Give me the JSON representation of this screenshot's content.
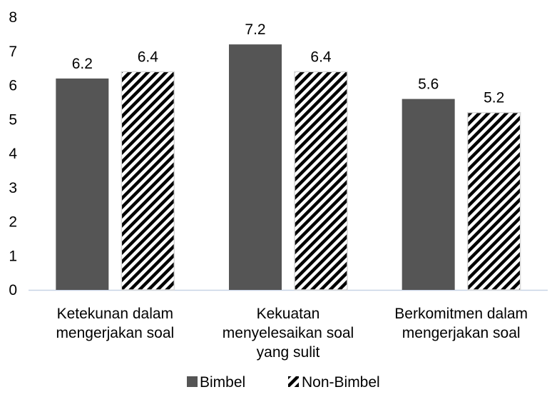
{
  "chart_data": {
    "type": "bar",
    "categories": [
      [
        "Ketekunan dalam",
        "mengerjakan soal"
      ],
      [
        "Kekuatan",
        "menyelesaikan soal",
        "yang sulit"
      ],
      [
        "Berkomitmen dalam",
        "mengerjakan soal"
      ]
    ],
    "series": [
      {
        "name": "Bimbel",
        "values": [
          6.2,
          7.2,
          5.6
        ],
        "fill": "solid",
        "color": "#555555"
      },
      {
        "name": "Non-Bimbel",
        "values": [
          6.4,
          6.4,
          5.2
        ],
        "fill": "diagonal-stripes",
        "color": "#000000"
      }
    ],
    "ylim": [
      0,
      8
    ],
    "yticks": [
      0,
      1,
      2,
      3,
      4,
      5,
      6,
      7,
      8
    ],
    "data_labels": true,
    "gridlines": false,
    "legend": "bottom-center",
    "title": "",
    "xlabel": "",
    "ylabel": ""
  }
}
